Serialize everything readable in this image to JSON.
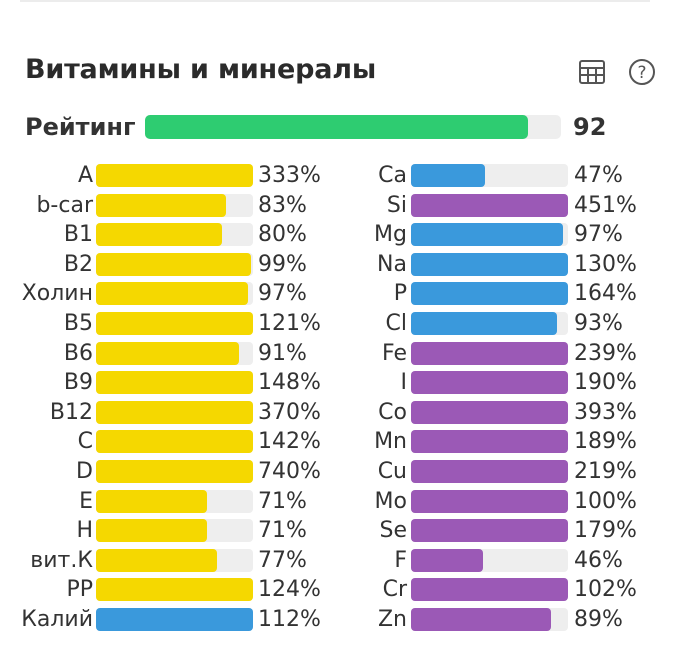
{
  "section": {
    "title": "Витамины и минералы",
    "icons": [
      {
        "name": "table-icon"
      },
      {
        "name": "help-icon"
      }
    ]
  },
  "rating": {
    "label": "Рейтинг",
    "value": "92",
    "percent": 92,
    "color": "#2ecc71"
  },
  "colors": {
    "vitamin": "#f5d800",
    "mineral_blue": "#3a99dc",
    "mineral_purple": "#9b59b6",
    "track": "#eeeeee"
  },
  "left_column": [
    {
      "label": "A",
      "value": "333%",
      "percent": 333,
      "color": "#f5d800"
    },
    {
      "label": "b-car",
      "value": "83%",
      "percent": 83,
      "color": "#f5d800"
    },
    {
      "label": "B1",
      "value": "80%",
      "percent": 80,
      "color": "#f5d800"
    },
    {
      "label": "B2",
      "value": "99%",
      "percent": 99,
      "color": "#f5d800"
    },
    {
      "label": "Холин",
      "value": "97%",
      "percent": 97,
      "color": "#f5d800"
    },
    {
      "label": "B5",
      "value": "121%",
      "percent": 121,
      "color": "#f5d800"
    },
    {
      "label": "B6",
      "value": "91%",
      "percent": 91,
      "color": "#f5d800"
    },
    {
      "label": "B9",
      "value": "148%",
      "percent": 148,
      "color": "#f5d800"
    },
    {
      "label": "B12",
      "value": "370%",
      "percent": 370,
      "color": "#f5d800"
    },
    {
      "label": "C",
      "value": "142%",
      "percent": 142,
      "color": "#f5d800"
    },
    {
      "label": "D",
      "value": "740%",
      "percent": 740,
      "color": "#f5d800"
    },
    {
      "label": "E",
      "value": "71%",
      "percent": 71,
      "color": "#f5d800"
    },
    {
      "label": "H",
      "value": "71%",
      "percent": 71,
      "color": "#f5d800"
    },
    {
      "label": "вит.К",
      "value": "77%",
      "percent": 77,
      "color": "#f5d800"
    },
    {
      "label": "PP",
      "value": "124%",
      "percent": 124,
      "color": "#f5d800"
    },
    {
      "label": "Калий",
      "value": "112%",
      "percent": 112,
      "color": "#3a99dc"
    }
  ],
  "right_column": [
    {
      "label": "Ca",
      "value": "47%",
      "percent": 47,
      "color": "#3a99dc"
    },
    {
      "label": "Si",
      "value": "451%",
      "percent": 451,
      "color": "#9b59b6"
    },
    {
      "label": "Mg",
      "value": "97%",
      "percent": 97,
      "color": "#3a99dc"
    },
    {
      "label": "Na",
      "value": "130%",
      "percent": 130,
      "color": "#3a99dc"
    },
    {
      "label": "P",
      "value": "164%",
      "percent": 164,
      "color": "#3a99dc"
    },
    {
      "label": "Cl",
      "value": "93%",
      "percent": 93,
      "color": "#3a99dc"
    },
    {
      "label": "Fe",
      "value": "239%",
      "percent": 239,
      "color": "#9b59b6"
    },
    {
      "label": "I",
      "value": "190%",
      "percent": 190,
      "color": "#9b59b6"
    },
    {
      "label": "Co",
      "value": "393%",
      "percent": 393,
      "color": "#9b59b6"
    },
    {
      "label": "Mn",
      "value": "189%",
      "percent": 189,
      "color": "#9b59b6"
    },
    {
      "label": "Cu",
      "value": "219%",
      "percent": 219,
      "color": "#9b59b6"
    },
    {
      "label": "Mo",
      "value": "100%",
      "percent": 100,
      "color": "#9b59b6"
    },
    {
      "label": "Se",
      "value": "179%",
      "percent": 179,
      "color": "#9b59b6"
    },
    {
      "label": "F",
      "value": "46%",
      "percent": 46,
      "color": "#9b59b6"
    },
    {
      "label": "Cr",
      "value": "102%",
      "percent": 102,
      "color": "#9b59b6"
    },
    {
      "label": "Zn",
      "value": "89%",
      "percent": 89,
      "color": "#9b59b6"
    }
  ]
}
